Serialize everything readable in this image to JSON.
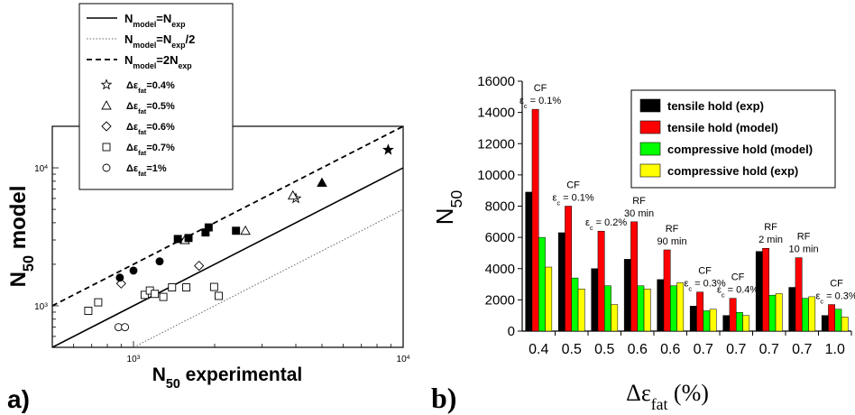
{
  "chart_data": [
    {
      "panel_label": "a)",
      "type": "scatter",
      "xlabel_main": "N",
      "xlabel_sub": "50",
      "xlabel_rest": " experimental",
      "ylabel_main": "N",
      "ylabel_sub": "50",
      "ylabel_rest": " model",
      "xscale": "log",
      "yscale": "log",
      "xlim": [
        500,
        10000
      ],
      "ylim": [
        500,
        20000
      ],
      "x_ticks": [
        {
          "value": 1000,
          "base": "10",
          "exp": "3"
        },
        {
          "value": 10000,
          "base": "10",
          "exp": "4"
        }
      ],
      "y_ticks": [
        {
          "value": 1000,
          "base": "10",
          "exp": "3"
        },
        {
          "value": 10000,
          "base": "10",
          "exp": "4"
        }
      ],
      "legend_position": "top-left",
      "lines": [
        {
          "key": "equal",
          "style": "solid",
          "factor": 1,
          "label": {
            "a": "N",
            "as": "model",
            "b": "=N",
            "bs": "exp",
            "c": ""
          }
        },
        {
          "key": "half",
          "style": "dotted",
          "factor": 0.5,
          "label": {
            "a": "N",
            "as": "model",
            "b": "=N",
            "bs": "exp",
            "c": "/2"
          }
        },
        {
          "key": "double",
          "style": "dashed",
          "factor": 2,
          "label": {
            "a": "N",
            "as": "model",
            "b": "=2N",
            "bs": "exp",
            "c": ""
          }
        }
      ],
      "series": [
        {
          "marker": "star",
          "label": {
            "pre": "Δε",
            "sub": "fat",
            "post": "=0.4%"
          },
          "hollow": [
            [
              4000,
              6000
            ]
          ],
          "filled": [
            [
              8800,
              13500
            ]
          ]
        },
        {
          "marker": "triangle",
          "label": {
            "pre": "Δε",
            "sub": "fat",
            "post": "=0.5%"
          },
          "hollow": [
            [
              1550,
              3000
            ],
            [
              2600,
              3500
            ],
            [
              3900,
              6300
            ]
          ],
          "filled": [
            [
              5000,
              7800
            ]
          ]
        },
        {
          "marker": "diamond",
          "label": {
            "pre": "Δε",
            "sub": "fat",
            "post": "=0.6%"
          },
          "hollow": [
            [
              900,
              1450
            ],
            [
              1750,
              1950
            ]
          ],
          "filled": []
        },
        {
          "marker": "square",
          "label": {
            "pre": "Δε",
            "sub": "fat",
            "post": "=0.7%"
          },
          "hollow": [
            [
              680,
              920
            ],
            [
              740,
              1060
            ],
            [
              1100,
              1200
            ],
            [
              1150,
              1290
            ],
            [
              1200,
              1220
            ],
            [
              1290,
              1160
            ],
            [
              1390,
              1360
            ],
            [
              1570,
              1360
            ],
            [
              1990,
              1370
            ],
            [
              2070,
              1180
            ]
          ],
          "filled": [
            [
              1460,
              3050
            ],
            [
              1600,
              3100
            ],
            [
              1850,
              3400
            ],
            [
              1900,
              3700
            ],
            [
              2400,
              3500
            ]
          ]
        },
        {
          "marker": "circle",
          "label": {
            "pre": "Δε",
            "sub": "fat",
            "post": "=1%"
          },
          "hollow": [
            [
              880,
              700
            ],
            [
              930,
              700
            ]
          ],
          "filled": [
            [
              890,
              1600
            ],
            [
              1000,
              1800
            ],
            [
              1250,
              2100
            ]
          ]
        }
      ]
    },
    {
      "panel_label": "b)",
      "type": "bar",
      "ylabel_main": "N",
      "ylabel_sub": "50",
      "xlabel_main": "Δε",
      "xlabel_sub": "fat",
      "xlabel_rest": " (%)",
      "ylim": [
        0,
        16000
      ],
      "y_ticks": [
        0,
        2000,
        4000,
        6000,
        8000,
        10000,
        12000,
        14000,
        16000
      ],
      "categories": [
        "0.4",
        "0.5",
        "0.5",
        "0.6",
        "0.6",
        "0.7",
        "0.7",
        "0.7",
        "0.7",
        "1.0"
      ],
      "legend_position": "top-right",
      "series": [
        {
          "name": "tensile hold (exp)",
          "color": "#000000",
          "values": [
            8900,
            6300,
            4000,
            4600,
            3300,
            1600,
            1000,
            5100,
            2800,
            1000
          ]
        },
        {
          "name": "tensile hold (model)",
          "color": "#ff0000",
          "values": [
            14200,
            8000,
            6400,
            7000,
            5200,
            2500,
            2100,
            5300,
            4700,
            1700
          ]
        },
        {
          "name": "compressive hold (model)",
          "color": "#00ff00",
          "values": [
            6000,
            3400,
            2900,
            2900,
            2900,
            1300,
            1200,
            2300,
            2100,
            1400
          ]
        },
        {
          "name": "compressive hold (exp)",
          "color": "#ffff00",
          "values": [
            4100,
            2700,
            1700,
            2700,
            3100,
            1400,
            1000,
            2400,
            2200,
            900
          ]
        }
      ],
      "annotations": [
        {
          "category": 0,
          "lines": [
            {
              "t": "CF"
            },
            {
              "t": "ε",
              "sub": "c",
              "rest": " = 0.1%"
            }
          ]
        },
        {
          "category": 1,
          "lines": [
            {
              "t": "CF"
            },
            {
              "t": "ε",
              "sub": "c",
              "rest": " = 0.1%"
            }
          ]
        },
        {
          "category": 2,
          "lines": [
            {
              "t": "ε",
              "sub": "c",
              "rest": " = 0.2%"
            }
          ]
        },
        {
          "category": 3,
          "lines": [
            {
              "t": "RF"
            },
            {
              "t": "30 min"
            }
          ]
        },
        {
          "category": 4,
          "lines": [
            {
              "t": "RF"
            },
            {
              "t": "90 min"
            }
          ]
        },
        {
          "category": 5,
          "lines": [
            {
              "t": "CF"
            },
            {
              "t": "ε",
              "sub": "c",
              "rest": " = 0.3%"
            }
          ]
        },
        {
          "category": 6,
          "lines": [
            {
              "t": "CF"
            },
            {
              "t": "ε",
              "sub": "c",
              "rest": " = 0.4%"
            }
          ]
        },
        {
          "category": 7,
          "lines": [
            {
              "t": "RF"
            },
            {
              "t": "2 min"
            }
          ]
        },
        {
          "category": 8,
          "lines": [
            {
              "t": "RF"
            },
            {
              "t": "10 min"
            }
          ]
        },
        {
          "category": 9,
          "lines": [
            {
              "t": "CF"
            },
            {
              "t": "ε",
              "sub": "c",
              "rest": " = 0.3%"
            }
          ]
        }
      ]
    }
  ]
}
